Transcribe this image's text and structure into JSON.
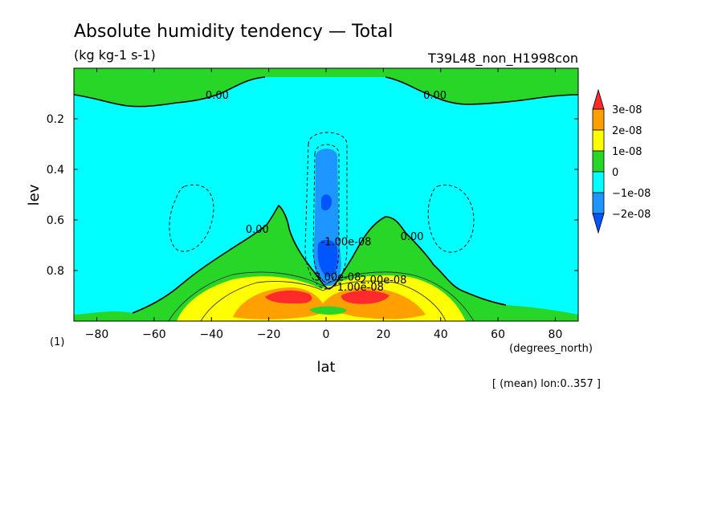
{
  "chart_data": {
    "type": "contour",
    "title": "Absolute humidity tendency — Total",
    "units": "(kg kg-1 s-1)",
    "experiment": "T39L48_non_H1998con",
    "xlabel": "lat",
    "xunits": "(degrees_north)",
    "ylabel": "lev",
    "yunits": "(1)",
    "note": "[ (mean) lon:0..357 ]",
    "xlim": [
      -88,
      88
    ],
    "ylim": [
      0,
      1
    ],
    "y_inverted": true,
    "x_ticks": [
      -80,
      -60,
      -40,
      -20,
      0,
      20,
      40,
      60,
      80
    ],
    "x_tick_labels": [
      "−80",
      "−60",
      "−40",
      "−20",
      "0",
      "20",
      "40",
      "60",
      "80"
    ],
    "y_ticks": [
      0.2,
      0.4,
      0.6,
      0.8
    ],
    "y_tick_labels": [
      "0.2",
      "0.4",
      "0.6",
      "0.8"
    ],
    "contour_labels": [
      {
        "text": "0.00",
        "lat": -38,
        "lev": 0.12
      },
      {
        "text": "0.00",
        "lat": 38,
        "lev": 0.12
      },
      {
        "text": "0.00",
        "lat": -24,
        "lev": 0.65
      },
      {
        "text": "0.00",
        "lat": 30,
        "lev": 0.68
      },
      {
        "text": "-1.00e-08",
        "lat": 7,
        "lev": 0.7
      },
      {
        "text": "3.00e-08",
        "lat": 4,
        "lev": 0.84
      },
      {
        "text": "2.00e-08",
        "lat": 20,
        "lev": 0.85
      },
      {
        "text": "1.00e-08",
        "lat": 12,
        "lev": 0.88
      }
    ],
    "colorbar": {
      "levels": [
        "3e-08",
        "2e-08",
        "1e-08",
        "0",
        "−1e-08",
        "−2e-08"
      ],
      "colors": [
        "#ff2a2a",
        "#ff9f00",
        "#ffff00",
        "#27d627",
        "#00ffff",
        "#1e96ff",
        "#0055ff"
      ]
    },
    "field_colors": {
      "green": "#27d627",
      "cyan": "#00ffff",
      "blue_light": "#1e96ff",
      "blue_dark": "#0055ff",
      "yellow": "#ffff00",
      "orange": "#ff9f00",
      "red": "#ff2a2a"
    }
  }
}
